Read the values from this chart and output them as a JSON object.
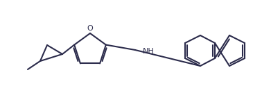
{
  "background_color": "#ffffff",
  "line_color": "#2b2b4b",
  "lw": 1.5,
  "fig_width": 3.78,
  "fig_height": 1.47,
  "dpi": 100
}
